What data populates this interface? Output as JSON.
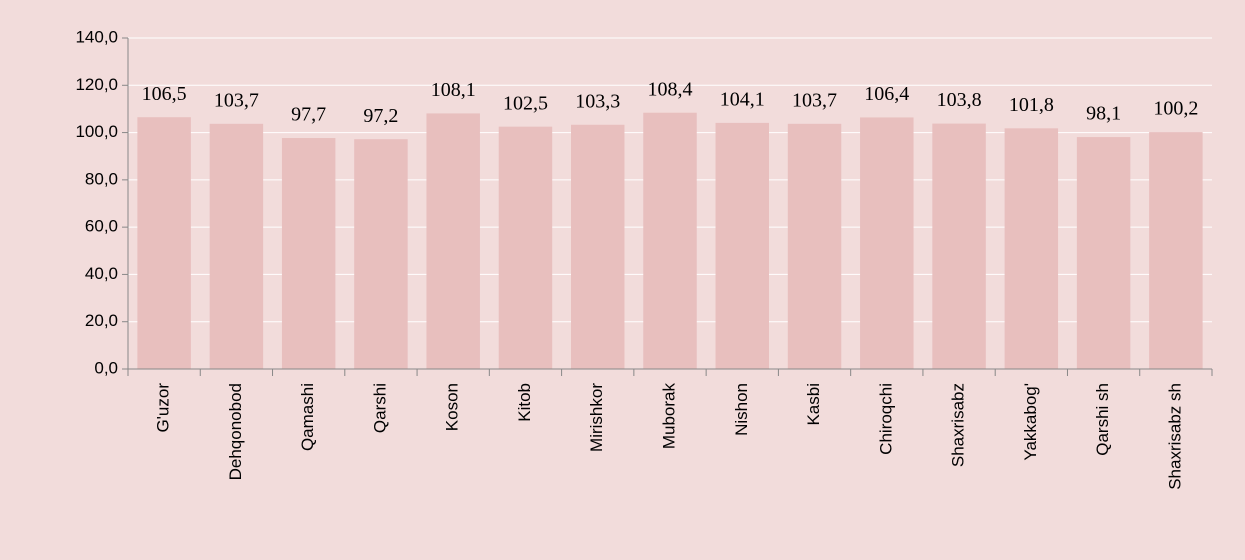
{
  "chart_data": {
    "type": "bar",
    "categories": [
      "G'uzor",
      "Dehqonobod",
      "Qamashi",
      "Qarshi",
      "Koson",
      "Kitob",
      "Mirishkor",
      "Muborak",
      "Nishon",
      "Kasbi",
      "Chiroqchi",
      "Shaxrisabz",
      "Yakkabog'",
      "Qarshi sh",
      "Shaxrisabz sh"
    ],
    "values": [
      106.5,
      103.7,
      97.7,
      97.2,
      108.1,
      102.5,
      103.3,
      108.4,
      104.1,
      103.7,
      106.4,
      103.8,
      101.8,
      98.1,
      100.2
    ],
    "value_labels": [
      "106,5",
      "103,7",
      "97,7",
      "97,2",
      "108,1",
      "102,5",
      "103,3",
      "108,4",
      "104,1",
      "103,7",
      "106,4",
      "103,8",
      "101,8",
      "98,1",
      "100,2"
    ],
    "color": "#e8bfbe",
    "ylim": [
      0,
      140
    ],
    "yticks": [
      {
        "value": 0,
        "label": "0,0"
      },
      {
        "value": 20,
        "label": "20,0"
      },
      {
        "value": 40,
        "label": "40,0"
      },
      {
        "value": 60,
        "label": "60,0"
      },
      {
        "value": 80,
        "label": "80,0"
      },
      {
        "value": 100,
        "label": "100,0"
      },
      {
        "value": 120,
        "label": "120,0"
      },
      {
        "value": 140,
        "label": "140,0"
      }
    ],
    "grid": true
  }
}
